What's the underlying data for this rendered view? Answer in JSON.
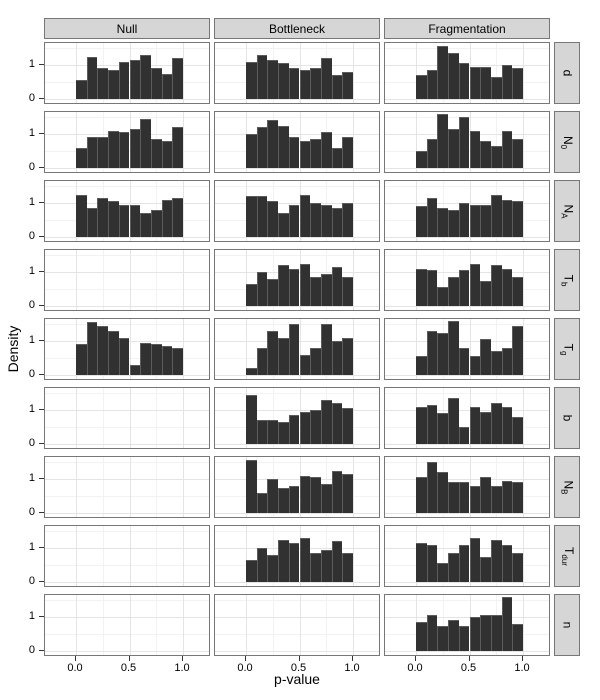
{
  "figure": {
    "ylabel": "Density",
    "xlabel": "p-value"
  },
  "axes": {
    "x_ticks": [
      {
        "label": "0.0",
        "value": 0
      },
      {
        "label": "0.5",
        "value": 0.5
      },
      {
        "label": "1.0",
        "value": 1
      }
    ],
    "y_ticks": [
      {
        "label": "1",
        "value": 1
      },
      {
        "label": "0",
        "value": 0
      }
    ]
  },
  "colors": {
    "bar_fill": "#313131",
    "bar_edge": "#5c5c5c",
    "strip_bg": "#d6d6d6",
    "panel_border": "#777777",
    "grid_major": "#e4e4e4",
    "grid_minor": "#f2f2f2",
    "text": "#000000"
  },
  "chart_data": {
    "type": "bar",
    "subtype": "faceted-histogram-grid",
    "title": "",
    "xlabel": "p-value",
    "ylabel": "Density",
    "bin_width": 0.1,
    "x_range": [
      0,
      1
    ],
    "y_range": [
      0,
      1.65
    ],
    "x_gridlines_major": [
      0,
      0.5,
      1
    ],
    "x_gridlines_minor": [
      0.25,
      0.75
    ],
    "y_gridlines_major": [
      0,
      1
    ],
    "y_gridlines_minor": [
      0.5,
      1.5
    ],
    "col_facets": [
      {
        "id": "null",
        "label": "Null"
      },
      {
        "id": "bottleneck",
        "label": "Bottleneck"
      },
      {
        "id": "fragmentation",
        "label": "Fragmentation"
      }
    ],
    "rows": [
      {
        "id": "d",
        "main": "d",
        "sub": "",
        "values": [
          [
            0.55,
            1.25,
            0.9,
            0.85,
            1.1,
            1.15,
            1.3,
            0.9,
            0.75,
            1.2
          ],
          [
            1.1,
            1.3,
            1.15,
            1.05,
            0.9,
            0.85,
            0.9,
            1.2,
            0.7,
            0.8
          ],
          [
            0.7,
            0.85,
            1.55,
            1.35,
            1.05,
            0.95,
            0.95,
            0.65,
            1.0,
            0.9
          ]
        ]
      },
      {
        "id": "n0",
        "main": "N",
        "sub": "0",
        "values": [
          [
            0.6,
            0.9,
            0.9,
            1.1,
            1.05,
            1.15,
            1.45,
            0.85,
            0.8,
            1.2
          ],
          [
            1.0,
            1.2,
            1.4,
            1.25,
            0.9,
            0.8,
            0.85,
            1.05,
            0.6,
            0.9
          ],
          [
            0.5,
            0.85,
            1.6,
            1.15,
            1.5,
            1.1,
            0.8,
            0.65,
            1.1,
            0.85
          ]
        ]
      },
      {
        "id": "na",
        "main": "N",
        "sub": "A",
        "values": [
          [
            1.25,
            0.85,
            1.15,
            1.05,
            0.95,
            0.95,
            0.7,
            0.8,
            1.1,
            1.15
          ],
          [
            1.2,
            1.2,
            1.05,
            0.7,
            0.95,
            1.25,
            1.0,
            0.95,
            0.85,
            1.0
          ],
          [
            0.9,
            1.15,
            0.85,
            0.8,
            1.0,
            0.95,
            0.95,
            1.25,
            1.1,
            1.05
          ]
        ]
      },
      {
        "id": "tb",
        "main": "T",
        "sub": "b",
        "values": [
          [],
          [
            0.65,
            1.0,
            0.8,
            1.2,
            1.1,
            1.25,
            0.85,
            0.95,
            1.15,
            0.85
          ],
          [
            1.1,
            1.05,
            0.55,
            0.85,
            1.05,
            1.25,
            0.75,
            1.2,
            1.1,
            0.85
          ]
        ]
      },
      {
        "id": "tg",
        "main": "T",
        "sub": "g",
        "values": [
          [
            0.9,
            1.55,
            1.45,
            1.3,
            1.1,
            0.3,
            0.95,
            0.9,
            0.85,
            0.8
          ],
          [
            0.2,
            0.8,
            1.3,
            1.1,
            1.5,
            0.6,
            0.8,
            1.5,
            1.0,
            1.1
          ],
          [
            0.55,
            1.3,
            1.25,
            1.6,
            0.8,
            0.55,
            1.05,
            0.7,
            0.8,
            1.45
          ]
        ]
      },
      {
        "id": "b",
        "main": "b",
        "sub": "",
        "values": [
          [],
          [
            1.45,
            0.7,
            0.7,
            0.65,
            0.85,
            0.95,
            1.0,
            1.3,
            1.2,
            1.05
          ],
          [
            1.1,
            1.15,
            0.9,
            1.35,
            0.5,
            1.1,
            0.95,
            1.2,
            1.1,
            0.8
          ]
        ]
      },
      {
        "id": "nb",
        "main": "N",
        "sub": "B",
        "values": [
          [],
          [
            1.55,
            0.6,
            1.0,
            0.75,
            0.8,
            1.1,
            1.05,
            0.85,
            1.25,
            1.15
          ],
          [
            1.05,
            1.5,
            1.2,
            0.9,
            0.9,
            0.8,
            1.05,
            0.8,
            0.95,
            0.9
          ]
        ]
      },
      {
        "id": "tdur",
        "main": "T",
        "sub": "dur",
        "values": [
          [],
          [
            0.65,
            1.0,
            0.8,
            1.25,
            1.15,
            1.3,
            0.85,
            0.95,
            1.2,
            0.85
          ],
          [
            1.15,
            1.1,
            0.55,
            0.85,
            1.1,
            1.3,
            0.75,
            1.25,
            1.1,
            0.85
          ]
        ]
      },
      {
        "id": "n",
        "main": "n",
        "sub": "",
        "values": [
          [],
          [],
          [
            0.85,
            1.05,
            0.75,
            0.9,
            0.75,
            1.0,
            1.05,
            1.05,
            1.6,
            0.8
          ]
        ]
      }
    ]
  }
}
